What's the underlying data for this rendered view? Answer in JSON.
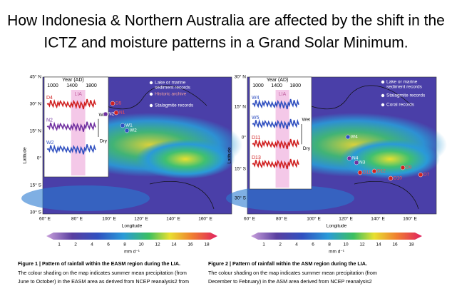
{
  "title": [
    "How Indonesia & Northern Australia are affected by the shift in the",
    "ICTZ and moisture patterns in a Grand Solar Minimum."
  ],
  "figures": [
    {
      "lat_ticks": [
        "45° N",
        "30° N",
        "15° N",
        "0°",
        "15° S",
        "30° S"
      ],
      "lon_ticks": [
        "60° E",
        "80° E",
        "100° E",
        "120° E",
        "140° E",
        "160° E"
      ],
      "ylabel": "Latitude",
      "xlabel": "Longitude",
      "inset": {
        "title": "Year (AD)",
        "ticks": [
          "1000",
          "1400",
          "1800"
        ],
        "period": "LIA",
        "series": [
          "D4",
          "N2",
          "W2"
        ],
        "wet": "Wet",
        "dry": "Dry"
      },
      "legend": [
        [
          "Lake or marine",
          "sediment records"
        ],
        [
          "Historic archive"
        ],
        [
          "Stalagmite records"
        ]
      ],
      "sites": [
        "D5",
        "N1",
        "N2",
        "W1",
        "W2"
      ],
      "colorbar": {
        "ticks": [
          "1",
          "2",
          "4",
          "6",
          "8",
          "10",
          "12",
          "14",
          "16",
          "18"
        ],
        "unit": "mm d⁻¹"
      },
      "caption": {
        "title": "Figure 1 | Pattern of rainfall within the EASM region during the LIA.",
        "lines": [
          "The colour shading on the map indicates summer mean precipitation (from",
          "June to October) in the EASM area as derived from NCEP reanalysis2 from"
        ]
      }
    },
    {
      "lat_ticks": [
        "30° N",
        "15° N",
        "0°",
        "15° S",
        "30° S"
      ],
      "lon_ticks": [
        "60° E",
        "80° E",
        "100° E",
        "120° E",
        "140° E",
        "160° E"
      ],
      "ylabel": "Latitude",
      "xlabel": "Longitude",
      "inset": {
        "title": "Year (AD)",
        "ticks": [
          "1000",
          "1400",
          "1800"
        ],
        "period": "LIA",
        "series": [
          "W4",
          "W5",
          "D11",
          "D13"
        ],
        "wet": "Wet",
        "dry": "Dry"
      },
      "legend": [
        [
          "Lake or marine",
          "sediment records"
        ],
        [
          "Stalagmite records"
        ],
        [
          "Coral records"
        ]
      ],
      "sites": [
        "W4",
        "N4",
        "N3",
        "D11",
        "D12",
        "D9",
        "D10",
        "D7"
      ],
      "colorbar": {
        "ticks": [
          "1",
          "2",
          "4",
          "6",
          "8",
          "10",
          "12",
          "14",
          "16",
          "18"
        ],
        "unit": "mm d⁻¹"
      },
      "caption": {
        "title": "Figure 2 | Pattern of rainfall within the ASM region during the LIA.",
        "lines": [
          "The colour shading on the map indicates summer mean precipitation (from",
          "December to February) in the ASM area derived from NCEP reanalysis2"
        ]
      }
    }
  ]
}
